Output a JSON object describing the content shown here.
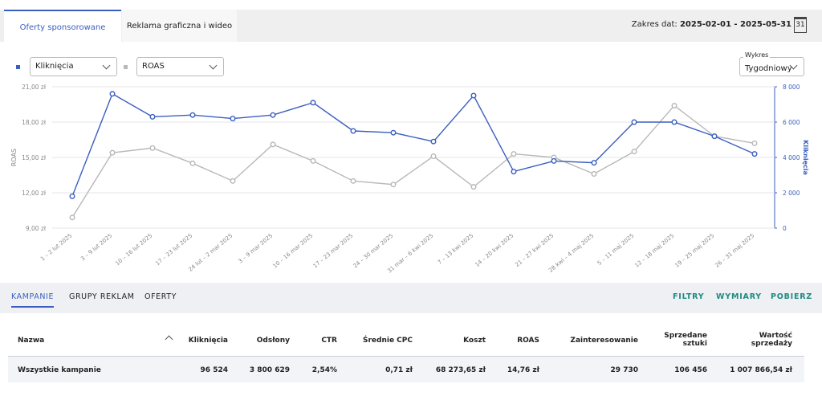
{
  "tabs": [
    "Oferty sponsorowane",
    "Reklama graficzna i wideo"
  ],
  "date_range": {
    "label": "Zakres dat:",
    "value": "2025-02-01 - 2025-05-31"
  },
  "calendar_icon": "31",
  "chart_view": {
    "label": "Wykres",
    "value": "Tygodniowy"
  },
  "chart_data": {
    "type": "line",
    "ylabel": "ROAS",
    "y2label": "Kliknięcia",
    "categories": [
      "1 – 2 lut 2025",
      "3 – 9 lut 2025",
      "10 – 16 lut 2025",
      "17 – 23 lut 2025",
      "24 lut – 2 mar 2025",
      "3 – 9 mar 2025",
      "10 – 16 mar 2025",
      "17 – 23 mar 2025",
      "24 – 30 mar 2025",
      "31 mar – 6 kwi 2025",
      "7 – 13 kwi 2025",
      "14 – 20 kwi 2025",
      "21 – 27 kwi 2025",
      "28 kwi – 4 maj 2025",
      "5 – 11 maj 2025",
      "12 – 18 maj 2025",
      "19 – 25 maj 2025",
      "26 – 31 maj 2025"
    ],
    "series": [
      {
        "name": "Kliknięcia",
        "color": "#3b5fc0",
        "axis": "y2",
        "values": [
          1800,
          7600,
          6300,
          6400,
          6200,
          6400,
          7100,
          5500,
          5400,
          4900,
          7500,
          3200,
          3800,
          3700,
          6000,
          6000,
          5200,
          4200
        ]
      },
      {
        "name": "ROAS",
        "color": "#b8b8b8",
        "values": [
          9.9,
          15.4,
          15.8,
          14.5,
          13.0,
          16.1,
          14.7,
          13.0,
          12.7,
          15.1,
          12.5,
          15.3,
          15.0,
          13.6,
          15.5,
          19.4,
          16.8,
          16.2
        ]
      }
    ],
    "ylim": [
      9,
      21
    ],
    "yticks": [
      {
        "value": 9,
        "label": "9,00 zł"
      },
      {
        "value": 12,
        "label": "12,00 zł"
      },
      {
        "value": 15,
        "label": "15,00 zł"
      },
      {
        "value": 18,
        "label": "18,00 zł"
      },
      {
        "value": 21,
        "label": "21,00 zł"
      }
    ],
    "y2lim": [
      0,
      8000
    ],
    "y2ticks": [
      0,
      {
        "value": 2000,
        "label": "2 000"
      },
      {
        "value": 4000,
        "label": "4 000"
      },
      {
        "value": 6000,
        "label": "6 000"
      },
      {
        "value": 8000,
        "label": "8 000"
      }
    ],
    "grid": true
  },
  "section_tabs": [
    "KAMPANIE",
    "GRUPY REKLAM",
    "OFERTY"
  ],
  "actions": [
    "FILTRY",
    "WYMIARY",
    "POBIERZ"
  ],
  "table": {
    "columns": [
      "Nazwa",
      "Kliknięcia",
      "Odsłony",
      "CTR",
      "Średnie CPC",
      "Koszt",
      "ROAS",
      "Zainteresowanie",
      "Sprzedane sztuki",
      "Wartość sprzedaży"
    ],
    "rows": [
      [
        "Wszystkie kampanie",
        "96 524",
        "3 800 629",
        "2,54%",
        "0,71 zł",
        "68 273,65 zł",
        "14,76 zł",
        "29 730",
        "106 456",
        "1 007 866,54 zł"
      ]
    ]
  }
}
